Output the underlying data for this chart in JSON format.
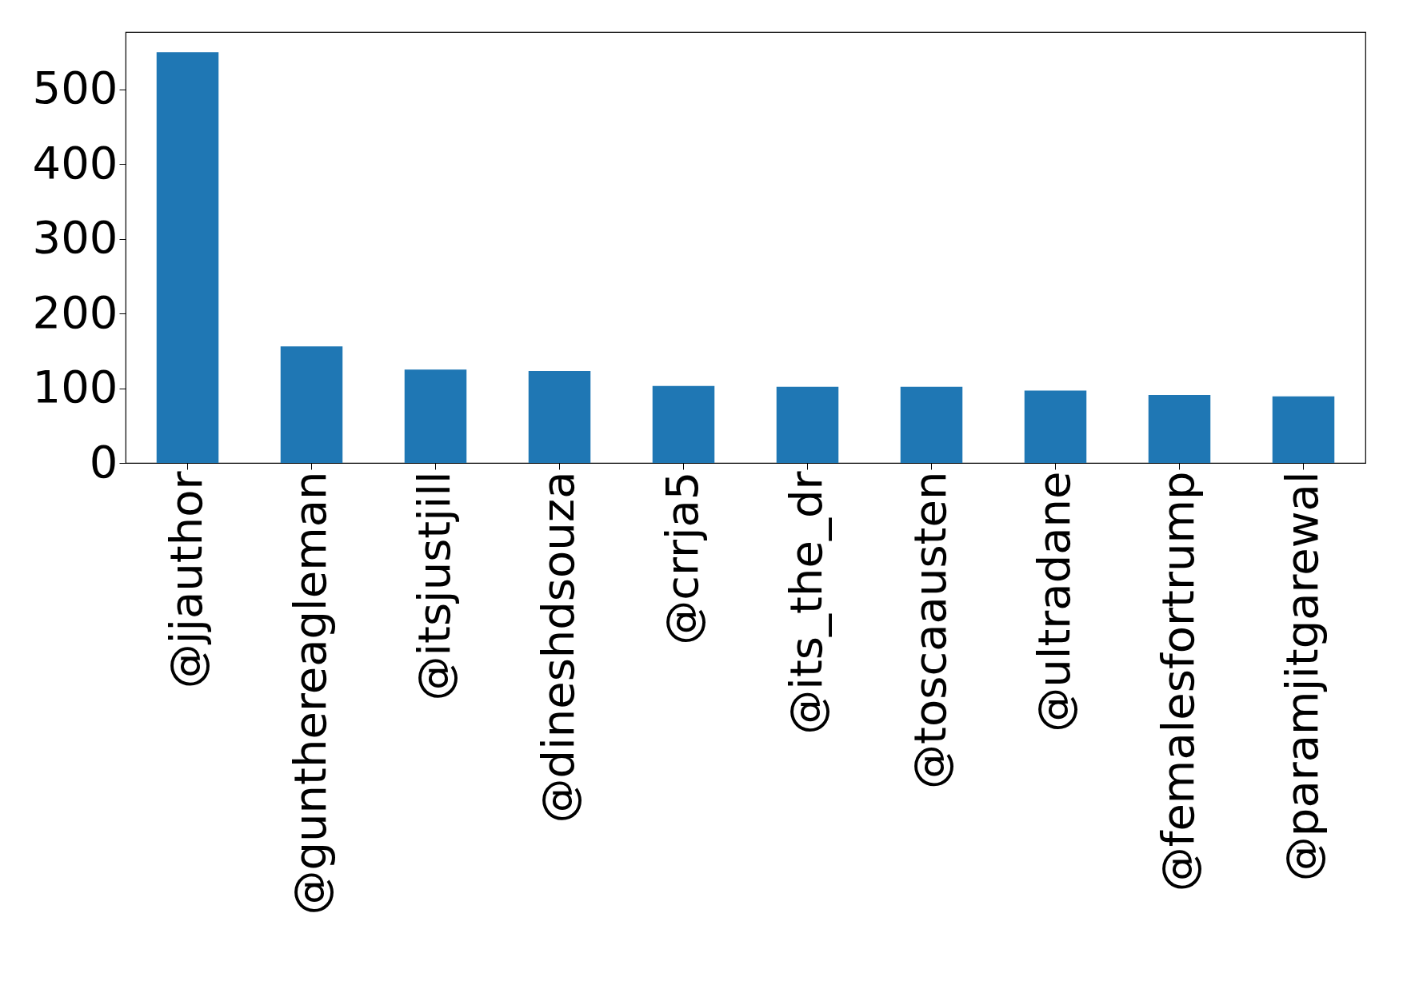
{
  "chart_data": {
    "type": "bar",
    "categories": [
      "@jjauthor",
      "@gunthereagleman",
      "@itsjustjill",
      "@dineshdsouza",
      "@crrja5",
      "@its_the_dr",
      "@toscaausten",
      "@ultradane",
      "@femalesfortrump",
      "@paramjitgarewal"
    ],
    "values": [
      550,
      156,
      125,
      123,
      103,
      102,
      102,
      97,
      91,
      89
    ],
    "color": "#1f77b4",
    "ylim": [
      0,
      577
    ],
    "yticks": [
      0,
      100,
      200,
      300,
      400,
      500
    ],
    "grid": false
  }
}
